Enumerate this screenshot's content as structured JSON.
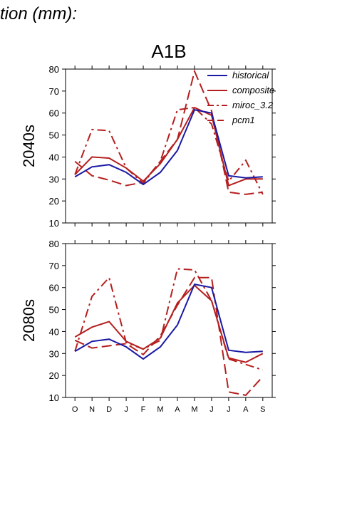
{
  "header": {
    "title_fragment": "tion (mm):"
  },
  "scenario": "A1B",
  "x_ticks": [
    "O",
    "N",
    "D",
    "J",
    "F",
    "M",
    "A",
    "M",
    "J",
    "J",
    "A",
    "S"
  ],
  "colors": {
    "historical": "#1a1aa6",
    "composite": "#b51f1f",
    "miroc_3.2": "#b51f1f",
    "pcm1": "#b51f1f"
  },
  "chart_data": [
    {
      "type": "line",
      "title": "A1B",
      "ylabel": "2040s",
      "xlabel": "",
      "ylim": [
        10,
        80
      ],
      "yticks": [
        10,
        20,
        30,
        40,
        50,
        60,
        70,
        80
      ],
      "categories": [
        "O",
        "N",
        "D",
        "J",
        "F",
        "M",
        "A",
        "M",
        "J",
        "J",
        "A",
        "S"
      ],
      "legend": {
        "placement": "top-right",
        "entries": [
          "historical",
          "composite",
          "miroc_3.2",
          "pcm1"
        ]
      },
      "series": [
        {
          "name": "historical",
          "style": "solid",
          "color": "#1a1aa6",
          "values": [
            31,
            35.5,
            36.5,
            33,
            27.5,
            33,
            43,
            61.5,
            60,
            31.5,
            30.5,
            31
          ]
        },
        {
          "name": "composite",
          "style": "solid",
          "color": "#b51f1f",
          "values": [
            32,
            40,
            39.5,
            35,
            29,
            37,
            48,
            62.5,
            59,
            27,
            30,
            30
          ]
        },
        {
          "name": "miroc_3.2",
          "style": "dashdot",
          "color": "#b51f1f",
          "values": [
            32,
            52.5,
            52,
            35,
            28,
            38,
            61.5,
            62.5,
            55,
            29,
            38.5,
            23
          ]
        },
        {
          "name": "pcm1",
          "style": "dashed",
          "color": "#b51f1f",
          "values": [
            38,
            31.5,
            29.5,
            27,
            28.5,
            38,
            48,
            79,
            61,
            24,
            23,
            24
          ]
        }
      ]
    },
    {
      "type": "line",
      "title": "",
      "ylabel": "2080s",
      "xlabel": "",
      "ylim": [
        10,
        80
      ],
      "yticks": [
        10,
        20,
        30,
        40,
        50,
        60,
        70,
        80
      ],
      "categories": [
        "O",
        "N",
        "D",
        "J",
        "F",
        "M",
        "A",
        "M",
        "J",
        "J",
        "A",
        "S"
      ],
      "series": [
        {
          "name": "historical",
          "style": "solid",
          "color": "#1a1aa6",
          "values": [
            31,
            35.5,
            36.5,
            33,
            27.5,
            33,
            43,
            61.5,
            60,
            31.5,
            30.5,
            31
          ]
        },
        {
          "name": "composite",
          "style": "solid",
          "color": "#b51f1f",
          "values": [
            37.5,
            42,
            44.5,
            35.5,
            32,
            37,
            53,
            61,
            54,
            28,
            26,
            30
          ]
        },
        {
          "name": "miroc_3.2",
          "style": "dashdot",
          "color": "#b51f1f",
          "values": [
            31,
            56,
            64.5,
            35,
            32,
            36,
            68.5,
            68,
            54,
            27.5,
            25,
            22.5
          ]
        },
        {
          "name": "pcm1",
          "style": "dashed",
          "color": "#b51f1f",
          "values": [
            36,
            32.5,
            33.5,
            34.5,
            29.5,
            38,
            52,
            64.5,
            64.5,
            12.5,
            11,
            19.5
          ]
        }
      ]
    }
  ]
}
